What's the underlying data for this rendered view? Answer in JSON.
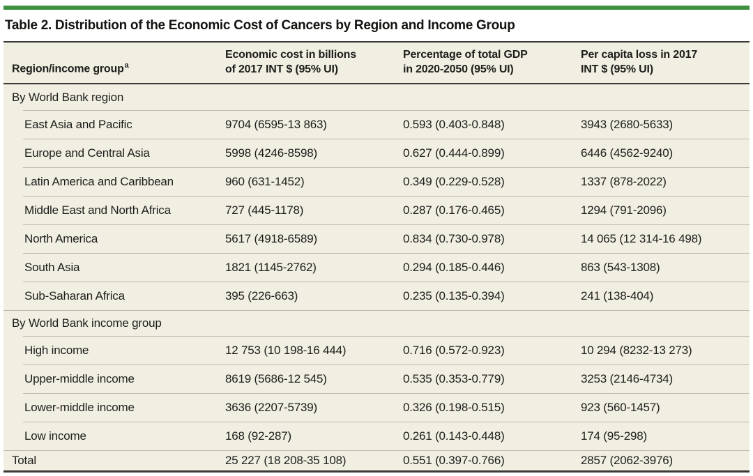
{
  "title": "Table 2. Distribution of the Economic Cost of Cancers by Region and Income Group",
  "columns": [
    {
      "label": "Region/income group",
      "footnote_marker": "a"
    },
    {
      "line1": "Economic cost in billions",
      "line2": "of 2017 INT $ (95% UI)"
    },
    {
      "line1": "Percentage of total GDP",
      "line2": "in 2020-2050 (95% UI)"
    },
    {
      "line1": "Per capita loss in 2017",
      "line2": "INT $ (95% UI)"
    }
  ],
  "sections": [
    {
      "header": "By World Bank region",
      "rows": [
        [
          "East Asia and Pacific",
          "9704 (6595-13 863)",
          "0.593 (0.403-0.848)",
          "3943 (2680-5633)"
        ],
        [
          "Europe and Central Asia",
          "5998 (4246-8598)",
          "0.627 (0.444-0.899)",
          "6446 (4562-9240)"
        ],
        [
          "Latin America and Caribbean",
          "960 (631-1452)",
          "0.349 (0.229-0.528)",
          "1337 (878-2022)"
        ],
        [
          "Middle East and North Africa",
          "727 (445-1178)",
          "0.287 (0.176-0.465)",
          "1294 (791-2096)"
        ],
        [
          "North America",
          "5617 (4918-6589)",
          "0.834 (0.730-0.978)",
          "14 065 (12 314-16 498)"
        ],
        [
          "South Asia",
          "1821 (1145-2762)",
          "0.294 (0.185-0.446)",
          "863 (543-1308)"
        ],
        [
          "Sub-Saharan Africa",
          "395 (226-663)",
          "0.235 (0.135-0.394)",
          "241 (138-404)"
        ]
      ]
    },
    {
      "header": "By World Bank income group",
      "rows": [
        [
          "High income",
          "12 753 (10 198-16 444)",
          "0.716 (0.572-0.923)",
          "10 294 (8232-13 273)"
        ],
        [
          "Upper-middle income",
          "8619 (5686-12 545)",
          "0.535 (0.353-0.779)",
          "3253 (2146-4734)"
        ],
        [
          "Lower-middle income",
          "3636 (2207-5739)",
          "0.326 (0.198-0.515)",
          "923 (560-1457)"
        ],
        [
          "Low income",
          "168 (92-287)",
          "0.261 (0.143-0.448)",
          "174 (95-298)"
        ]
      ]
    }
  ],
  "total": [
    "Total",
    "25 227 (18 208-35 108)",
    "0.551 (0.397-0.766)",
    "2857 (2062-3976)"
  ],
  "colors": {
    "accent_green": "#3f9142",
    "table_background": "#f1efe2",
    "dark_rule": "#3a3935",
    "light_rule": "#bdbbae",
    "text": "#1e1d1a"
  }
}
